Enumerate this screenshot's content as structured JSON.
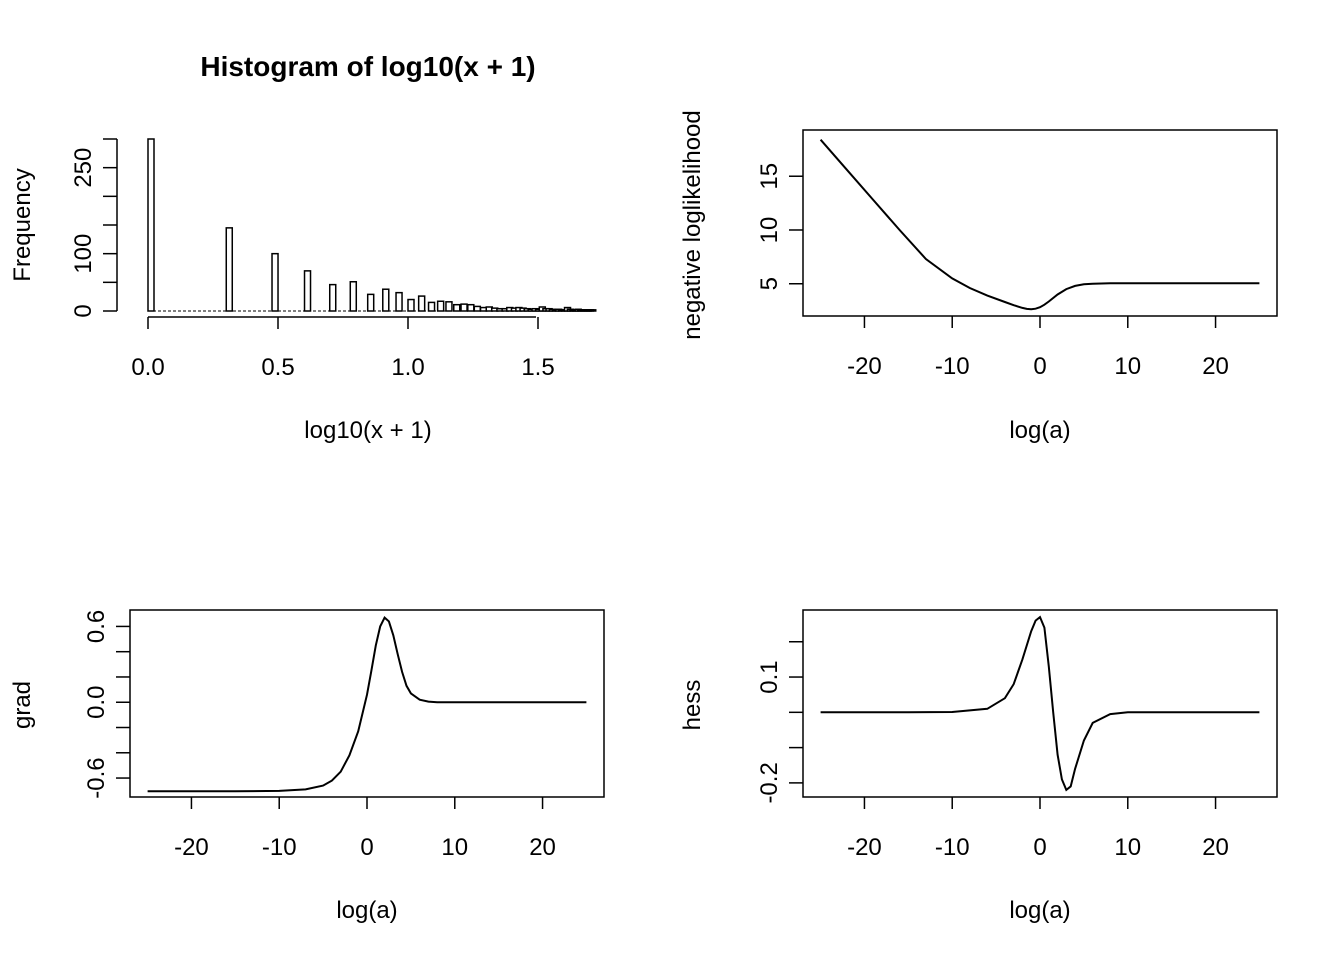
{
  "chart_data": [
    {
      "type": "bar",
      "title": "Histogram of log10(x + 1)",
      "xlabel": "log10(x + 1)",
      "ylabel": "Frequency",
      "xlim": [
        0,
        1.7
      ],
      "ylim": [
        0,
        300
      ],
      "x_ticks": [
        "0.0",
        "0.5",
        "1.0",
        "1.5"
      ],
      "y_ticks": [
        "0",
        "100",
        "250"
      ],
      "grid": false,
      "bins": [
        {
          "x": 0.0,
          "y": 300
        },
        {
          "x": 0.301,
          "y": 145
        },
        {
          "x": 0.477,
          "y": 100
        },
        {
          "x": 0.602,
          "y": 70
        },
        {
          "x": 0.699,
          "y": 46
        },
        {
          "x": 0.778,
          "y": 51
        },
        {
          "x": 0.845,
          "y": 29
        },
        {
          "x": 0.903,
          "y": 38
        },
        {
          "x": 0.954,
          "y": 32
        },
        {
          "x": 1.0,
          "y": 20
        },
        {
          "x": 1.041,
          "y": 26
        },
        {
          "x": 1.079,
          "y": 15
        },
        {
          "x": 1.114,
          "y": 17
        },
        {
          "x": 1.146,
          "y": 16
        },
        {
          "x": 1.176,
          "y": 11
        },
        {
          "x": 1.204,
          "y": 12
        },
        {
          "x": 1.23,
          "y": 11
        },
        {
          "x": 1.255,
          "y": 8
        },
        {
          "x": 1.279,
          "y": 6
        },
        {
          "x": 1.301,
          "y": 7
        },
        {
          "x": 1.322,
          "y": 5
        },
        {
          "x": 1.342,
          "y": 4
        },
        {
          "x": 1.362,
          "y": 4
        },
        {
          "x": 1.38,
          "y": 6
        },
        {
          "x": 1.398,
          "y": 5
        },
        {
          "x": 1.415,
          "y": 6
        },
        {
          "x": 1.431,
          "y": 5
        },
        {
          "x": 1.447,
          "y": 4
        },
        {
          "x": 1.462,
          "y": 3
        },
        {
          "x": 1.477,
          "y": 4
        },
        {
          "x": 1.491,
          "y": 3
        },
        {
          "x": 1.505,
          "y": 7
        },
        {
          "x": 1.519,
          "y": 4
        },
        {
          "x": 1.531,
          "y": 4
        },
        {
          "x": 1.544,
          "y": 3
        },
        {
          "x": 1.556,
          "y": 2
        },
        {
          "x": 1.568,
          "y": 3
        },
        {
          "x": 1.58,
          "y": 2
        },
        {
          "x": 1.591,
          "y": 2
        },
        {
          "x": 1.602,
          "y": 6
        },
        {
          "x": 1.613,
          "y": 3
        },
        {
          "x": 1.623,
          "y": 2
        },
        {
          "x": 1.633,
          "y": 2
        },
        {
          "x": 1.643,
          "y": 3
        },
        {
          "x": 1.653,
          "y": 2
        },
        {
          "x": 1.663,
          "y": 2
        },
        {
          "x": 1.672,
          "y": 2
        },
        {
          "x": 1.681,
          "y": 2
        },
        {
          "x": 1.69,
          "y": 2
        },
        {
          "x": 1.699,
          "y": 2
        }
      ]
    },
    {
      "type": "line",
      "title": "",
      "xlabel": "log(a)",
      "ylabel": "negative loglikelihood",
      "xlim": [
        -27,
        27
      ],
      "ylim": [
        2,
        19.3
      ],
      "x_ticks": [
        "-20",
        "-10",
        "0",
        "10",
        "20"
      ],
      "y_ticks": [
        "5",
        "10",
        "15"
      ],
      "grid": false,
      "x": [
        -25,
        -22,
        -19,
        -16,
        -13,
        -10,
        -8,
        -6,
        -4,
        -3,
        -2,
        -1.5,
        -1,
        -0.5,
        0,
        0.5,
        1,
        2,
        3,
        4,
        5,
        6,
        8,
        10,
        15,
        20,
        25
      ],
      "y": [
        18.4,
        15.6,
        12.8,
        10.0,
        7.3,
        5.5,
        4.6,
        3.9,
        3.3,
        3.0,
        2.75,
        2.66,
        2.62,
        2.68,
        2.82,
        3.05,
        3.35,
        4.0,
        4.5,
        4.8,
        4.95,
        5.0,
        5.05,
        5.05,
        5.05,
        5.05,
        5.05
      ]
    },
    {
      "type": "line",
      "title": "",
      "xlabel": "log(a)",
      "ylabel": "grad",
      "xlim": [
        -27,
        27
      ],
      "ylim": [
        -0.75,
        0.73
      ],
      "x_ticks": [
        "-20",
        "-10",
        "0",
        "10",
        "20"
      ],
      "y_ticks": [
        "-0.6",
        "0.0",
        "0.6"
      ],
      "grid": false,
      "x": [
        -25,
        -20,
        -15,
        -10,
        -7,
        -5,
        -4,
        -3,
        -2,
        -1,
        0,
        0.5,
        1,
        1.5,
        2,
        2.5,
        3,
        3.5,
        4,
        4.5,
        5,
        6,
        7,
        8,
        10,
        15,
        20,
        25
      ],
      "y": [
        -0.705,
        -0.705,
        -0.705,
        -0.702,
        -0.69,
        -0.66,
        -0.62,
        -0.55,
        -0.42,
        -0.23,
        0.06,
        0.25,
        0.45,
        0.6,
        0.67,
        0.64,
        0.53,
        0.38,
        0.24,
        0.13,
        0.07,
        0.02,
        0.005,
        0.0,
        0.0,
        0.0,
        0.0,
        0.0
      ]
    },
    {
      "type": "line",
      "title": "",
      "xlabel": "log(a)",
      "ylabel": "hess",
      "xlim": [
        -27,
        27
      ],
      "ylim": [
        -0.24,
        0.29
      ],
      "x_ticks": [
        "-20",
        "-10",
        "0",
        "10",
        "20"
      ],
      "y_ticks": [
        "-0.2",
        "0.1"
      ],
      "grid": false,
      "x": [
        -25,
        -15,
        -10,
        -6,
        -4,
        -3,
        -2,
        -1,
        -0.5,
        0,
        0.5,
        1,
        1.5,
        2,
        2.5,
        3,
        3.5,
        4,
        5,
        6,
        8,
        10,
        15,
        20,
        25
      ],
      "y": [
        0.0,
        0.0,
        0.001,
        0.01,
        0.04,
        0.08,
        0.15,
        0.23,
        0.26,
        0.27,
        0.24,
        0.13,
        0.0,
        -0.12,
        -0.19,
        -0.22,
        -0.21,
        -0.16,
        -0.08,
        -0.03,
        -0.005,
        0.0,
        0.0,
        0.0,
        0.0
      ]
    }
  ]
}
